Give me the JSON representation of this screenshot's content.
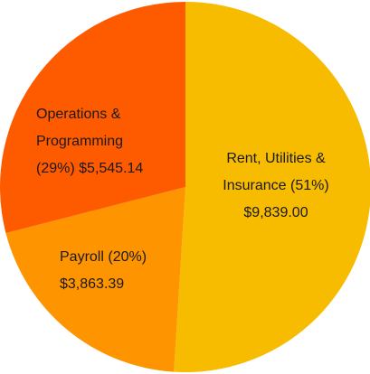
{
  "chart_data": {
    "type": "pie",
    "categories": [
      "Rent, Utilities & Insurance",
      "Payroll",
      "Operations & Programming"
    ],
    "values": [
      51,
      20,
      29
    ],
    "value_labels": [
      "(51%)",
      "(20%)",
      "(29%)"
    ],
    "amounts": [
      9839.0,
      3863.39,
      5545.14
    ],
    "amount_labels": [
      "$9,839.00",
      "$3,863.39",
      "$5,545.14"
    ],
    "colors": [
      "#f7bb00",
      "#fd9400",
      "#fe5a00"
    ]
  }
}
